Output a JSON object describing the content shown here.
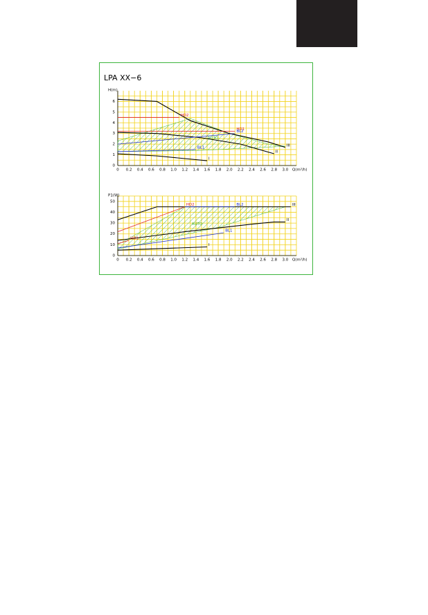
{
  "title": "LPA XX−6",
  "chart_data": [
    {
      "type": "line",
      "ylabel": "H(m)",
      "xlabel": "Q(m³/h)",
      "xlim": [
        0,
        3.2
      ],
      "ylim": [
        0,
        7
      ],
      "xticks": [
        0,
        0.2,
        0.4,
        0.6,
        0.8,
        {
          "value": 1,
          "label": "1.0"
        },
        1.2,
        1.4,
        1.6,
        1.8,
        {
          "value": 2,
          "label": "2.0"
        },
        2.2,
        2.4,
        2.6,
        2.8,
        {
          "value": 3,
          "label": "3.0"
        }
      ],
      "yticks": [
        0,
        1,
        2,
        3,
        4,
        5,
        6
      ],
      "grid": true,
      "grid_color": "#f2d21a",
      "regions": [
        {
          "name": "AUTO",
          "color": "#3cb43c",
          "x": [
            0,
            1.3,
            2.0,
            2.7,
            3.0,
            1.4,
            0
          ],
          "values": [
            2.3,
            4.4,
            3.0,
            2.0,
            1.8,
            1.4,
            1.3
          ]
        }
      ],
      "series": [
        {
          "name": "III",
          "color": "#000000",
          "x": [
            0,
            0.7,
            1.3,
            2.0,
            2.7,
            3.0
          ],
          "values": [
            6.2,
            6.0,
            4.2,
            3.0,
            2.2,
            1.7
          ]
        },
        {
          "name": "II",
          "color": "#000000",
          "x": [
            0,
            0.7,
            1.5,
            2.2,
            2.8
          ],
          "values": [
            3.1,
            3.0,
            2.6,
            2.0,
            1.1
          ]
        },
        {
          "name": "I",
          "color": "#000000",
          "x": [
            0,
            0.7,
            1.6
          ],
          "values": [
            1.1,
            0.9,
            0.45
          ]
        },
        {
          "name": "HD2",
          "color": "#e02020",
          "x": [
            0,
            1.1
          ],
          "values": [
            4.5,
            4.5
          ]
        },
        {
          "name": "HD1",
          "color": "#e02020",
          "x": [
            0,
            2.1
          ],
          "values": [
            3.2,
            3.2
          ]
        },
        {
          "name": "BL2",
          "color": "#2030c0",
          "x": [
            0,
            2.1
          ],
          "values": [
            2.0,
            3.0
          ]
        },
        {
          "name": "BL1",
          "color": "#2030c0",
          "x": [
            0,
            1.4
          ],
          "values": [
            1.3,
            1.5
          ]
        }
      ]
    },
    {
      "type": "line",
      "ylabel": "P1(W)",
      "xlabel": "Q(m³/h)",
      "xlim": [
        0,
        3.2
      ],
      "ylim": [
        0,
        55
      ],
      "xticks": [
        0,
        0.2,
        0.4,
        0.6,
        0.8,
        {
          "value": 1,
          "label": "1.0"
        },
        1.2,
        1.4,
        1.6,
        1.8,
        {
          "value": 2,
          "label": "2.0"
        },
        2.2,
        2.4,
        2.6,
        2.8,
        {
          "value": 3,
          "label": "3.0"
        }
      ],
      "yticks": [
        0,
        10,
        20,
        30,
        40,
        50
      ],
      "grid": true,
      "grid_color": "#f2d21a",
      "regions": [
        {
          "name": "AUTO",
          "color": "#3cb43c",
          "x": [
            0,
            1.2,
            3.0,
            1.8,
            0
          ],
          "values": [
            10,
            45,
            45,
            26,
            6
          ]
        }
      ],
      "series": [
        {
          "name": "III",
          "color": "#000000",
          "x": [
            0,
            0.7,
            3.1
          ],
          "values": [
            33,
            45,
            45
          ]
        },
        {
          "name": "II",
          "color": "#000000",
          "x": [
            0,
            1.2,
            2.4,
            2.8,
            3.0
          ],
          "values": [
            14,
            22,
            29,
            31,
            31
          ]
        },
        {
          "name": "I",
          "color": "#000000",
          "x": [
            0,
            1.6
          ],
          "values": [
            5,
            8
          ]
        },
        {
          "name": "HD2",
          "color": "#e02020",
          "x": [
            0,
            1.2
          ],
          "values": [
            22,
            45
          ]
        },
        {
          "name": "HD1",
          "color": "#e02020",
          "x": [
            0,
            0.2
          ],
          "values": [
            11,
            14
          ]
        },
        {
          "name": "BL2",
          "color": "#2030c0",
          "x": [
            1.2,
            2.1
          ],
          "values": [
            45,
            45
          ]
        },
        {
          "name": "BL1",
          "color": "#2030c0",
          "x": [
            0,
            1.9
          ],
          "values": [
            7,
            21
          ]
        }
      ]
    }
  ]
}
